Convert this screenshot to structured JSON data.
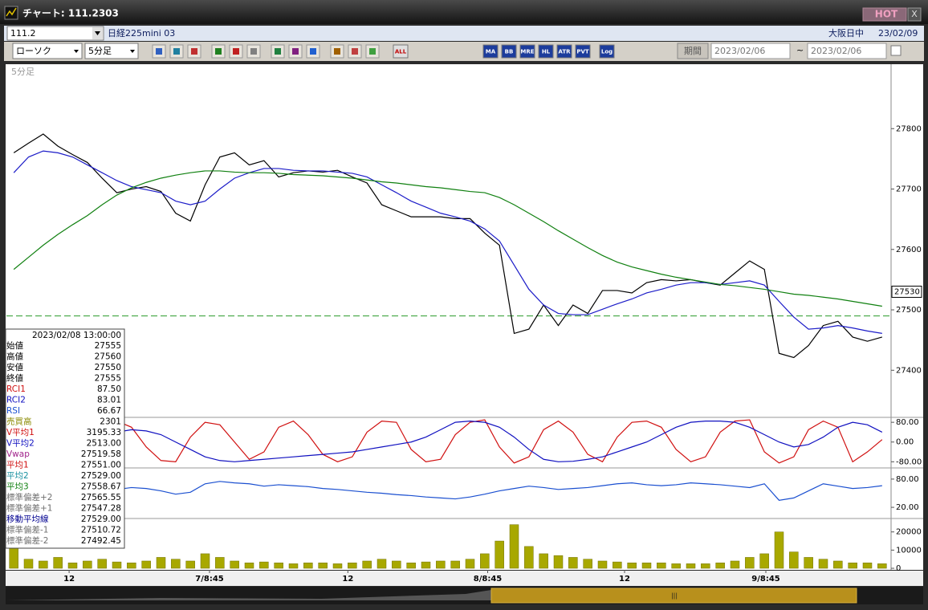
{
  "window": {
    "title": "チャート: 111.2303",
    "hot": "HOT",
    "close": "X"
  },
  "header": {
    "code": "111.2",
    "name": "日経225mini 03",
    "session": "大阪日中",
    "date": "23/02/09"
  },
  "toolbar": {
    "chart_kind": "ローソク",
    "interval": "5分足",
    "buttons": [
      "ALL",
      "MA",
      "BB",
      "MRE",
      "HL",
      "ATR",
      "PVT",
      "Log"
    ],
    "period": "期間",
    "from": "2023/02/06",
    "tilde": "~",
    "to": "2023/02/06"
  },
  "info_panel": {
    "datetime": "2023/02/08 13:00:00",
    "rows": [
      {
        "label": "始値",
        "value": "27555",
        "color": "#000000"
      },
      {
        "label": "高値",
        "value": "27560",
        "color": "#000000"
      },
      {
        "label": "安値",
        "value": "27550",
        "color": "#000000"
      },
      {
        "label": "終値",
        "value": "27555",
        "color": "#000000"
      },
      {
        "label": "RCI1",
        "value": "87.50",
        "color": "#d01010"
      },
      {
        "label": "RCI2",
        "value": "83.01",
        "color": "#1010c0"
      },
      {
        "label": "RSI",
        "value": "66.67",
        "color": "#1a4fd0"
      },
      {
        "label": "売買高",
        "value": "2301",
        "color": "#8a8a00"
      },
      {
        "label": "V平均1",
        "value": "3195.33",
        "color": "#d01010"
      },
      {
        "label": "V平均2",
        "value": "2513.00",
        "color": "#1010c0"
      },
      {
        "label": "Vwap",
        "value": "27519.58",
        "color": "#a0208a"
      },
      {
        "label": "平均1",
        "value": "27551.00",
        "color": "#d01010"
      },
      {
        "label": "平均2",
        "value": "27529.00",
        "color": "#1890a0"
      },
      {
        "label": "平均3",
        "value": "27558.67",
        "color": "#108010"
      },
      {
        "label": "標準偏差+2",
        "value": "27565.55",
        "color": "#707070"
      },
      {
        "label": "標準偏差+1",
        "value": "27547.28",
        "color": "#707070"
      },
      {
        "label": "移動平均線",
        "value": "27529.00",
        "color": "#000090"
      },
      {
        "label": "標準偏差-1",
        "value": "27510.72",
        "color": "#707070"
      },
      {
        "label": "標準偏差-2",
        "value": "27492.45",
        "color": "#707070"
      }
    ]
  },
  "chart_data": [
    {
      "type": "line",
      "title": "5分足",
      "xlim": [
        0,
        60
      ],
      "xticks": [
        {
          "value": 4.26,
          "label": "12"
        },
        {
          "value": 13.8,
          "label": "7/8:45"
        },
        {
          "value": 23.2,
          "label": "12"
        },
        {
          "value": 32.7,
          "label": "8/8:45"
        },
        {
          "value": 42.0,
          "label": "12"
        },
        {
          "value": 51.6,
          "label": "9/8:45"
        }
      ],
      "ylim": [
        27322,
        27904
      ],
      "yticks": [
        27400,
        27500,
        27600,
        27700,
        27800
      ],
      "level_line": 27490,
      "level_color": "#2a9a2a",
      "last_price": 27530,
      "series": [
        {
          "color": "#000000",
          "values": [
            27760,
            27776,
            27791,
            27771,
            27757,
            27744,
            27718,
            27694,
            27700,
            27704,
            27696,
            27660,
            27647,
            27707,
            27753,
            27760,
            27740,
            27747,
            27720,
            27727,
            27730,
            27728,
            27731,
            27720,
            27710,
            27674,
            27664,
            27654,
            27654,
            27654,
            27651,
            27651,
            27627,
            27607,
            27461,
            27468,
            27508,
            27474,
            27508,
            27494,
            27532,
            27532,
            27528,
            27545,
            27550,
            27548,
            27550,
            27545,
            27541,
            27561,
            27581,
            27567,
            27428,
            27421,
            27441,
            27474,
            27481,
            27455,
            27448,
            27455
          ]
        },
        {
          "color": "#1c1cc8",
          "values": [
            27727,
            27753,
            27763,
            27760,
            27753,
            27740,
            27727,
            27714,
            27704,
            27699,
            27694,
            27680,
            27674,
            27680,
            27700,
            27718,
            27727,
            27734,
            27734,
            27731,
            27730,
            27730,
            27728,
            27726,
            27720,
            27707,
            27694,
            27680,
            27670,
            27660,
            27654,
            27647,
            27634,
            27614,
            27574,
            27534,
            27508,
            27494,
            27492,
            27492,
            27501,
            27510,
            27518,
            27528,
            27534,
            27541,
            27545,
            27545,
            27542,
            27545,
            27548,
            27541,
            27514,
            27488,
            27468,
            27470,
            27474,
            27470,
            27465,
            27461
          ]
        },
        {
          "color": "#108010",
          "values": [
            27567,
            27587,
            27607,
            27625,
            27641,
            27656,
            27674,
            27690,
            27702,
            27711,
            27718,
            27723,
            27727,
            27730,
            27730,
            27728,
            27727,
            27727,
            27726,
            27724,
            27723,
            27722,
            27720,
            27718,
            27715,
            27712,
            27710,
            27707,
            27704,
            27702,
            27699,
            27696,
            27694,
            27686,
            27674,
            27660,
            27646,
            27631,
            27617,
            27603,
            27590,
            27579,
            27571,
            27565,
            27559,
            27554,
            27550,
            27546,
            27542,
            27540,
            27537,
            27534,
            27530,
            27526,
            27524,
            27521,
            27518,
            27514,
            27510,
            27506
          ]
        }
      ]
    },
    {
      "type": "line",
      "ylim": [
        -105,
        100
      ],
      "yticks": [
        {
          "value": 80,
          "label": "80.00"
        },
        {
          "value": 0,
          "label": "0.00"
        },
        {
          "value": -80,
          "label": "-80.00"
        }
      ],
      "series": [
        {
          "color": "#d01010",
          "values": [
            60,
            80,
            20,
            -60,
            -80,
            -40,
            40,
            85,
            60,
            -20,
            -75,
            -80,
            20,
            80,
            70,
            0,
            -70,
            -40,
            60,
            85,
            30,
            -50,
            -80,
            -60,
            40,
            85,
            80,
            -30,
            -80,
            -70,
            30,
            80,
            90,
            -20,
            -85,
            -60,
            50,
            85,
            40,
            -50,
            -80,
            20,
            80,
            85,
            60,
            -30,
            -80,
            -60,
            40,
            85,
            90,
            -40,
            -85,
            -60,
            50,
            85,
            60,
            -80,
            -40,
            10
          ]
        },
        {
          "color": "#1010c0",
          "values": [
            -70,
            -75,
            -70,
            -60,
            -40,
            -10,
            20,
            40,
            50,
            45,
            30,
            0,
            -30,
            -60,
            -75,
            -80,
            -75,
            -70,
            -65,
            -60,
            -55,
            -50,
            -45,
            -40,
            -30,
            -20,
            -10,
            0,
            20,
            50,
            80,
            85,
            80,
            60,
            20,
            -30,
            -70,
            -80,
            -78,
            -70,
            -60,
            -40,
            -20,
            0,
            30,
            60,
            80,
            85,
            85,
            80,
            60,
            30,
            0,
            -20,
            -10,
            20,
            60,
            80,
            70,
            40
          ]
        }
      ]
    },
    {
      "type": "line",
      "ylim": [
        -2,
        102
      ],
      "yticks": [
        {
          "value": 80,
          "label": "80.00"
        },
        {
          "value": 20,
          "label": "20.00"
        }
      ],
      "series": [
        {
          "color": "#1a4fd0",
          "values": [
            50,
            48,
            55,
            60,
            62,
            55,
            50,
            58,
            62,
            60,
            55,
            48,
            52,
            70,
            75,
            72,
            70,
            65,
            68,
            66,
            64,
            60,
            58,
            55,
            52,
            50,
            47,
            45,
            42,
            40,
            38,
            42,
            48,
            55,
            60,
            65,
            62,
            58,
            60,
            62,
            66,
            70,
            72,
            68,
            66,
            68,
            72,
            70,
            68,
            65,
            62,
            70,
            35,
            40,
            55,
            70,
            65,
            60,
            62,
            66
          ]
        }
      ]
    },
    {
      "type": "bar",
      "ylim": [
        -870,
        26500
      ],
      "yticks": [
        20000,
        10000,
        0
      ],
      "color": "#a8a800",
      "values": [
        12000,
        5000,
        4000,
        6000,
        3000,
        4000,
        5000,
        3500,
        3000,
        4000,
        6000,
        5000,
        4000,
        8000,
        6000,
        4000,
        3000,
        3500,
        3000,
        2500,
        3000,
        3000,
        2500,
        3000,
        4000,
        5000,
        4000,
        3000,
        3500,
        4000,
        4000,
        5000,
        8000,
        15000,
        24000,
        12000,
        8000,
        7000,
        6000,
        5000,
        4000,
        3500,
        3000,
        3000,
        3000,
        2500,
        2500,
        2500,
        3000,
        4000,
        6000,
        8000,
        20000,
        9000,
        6000,
        5000,
        4000,
        3000,
        3000,
        2500
      ]
    }
  ]
}
